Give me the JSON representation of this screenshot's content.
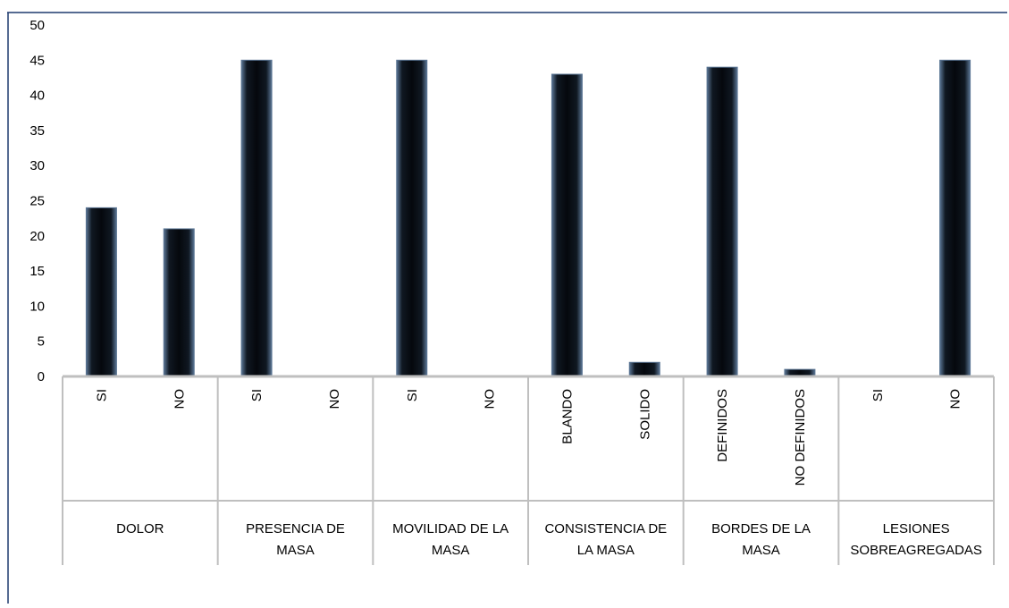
{
  "chart_data": {
    "type": "bar",
    "ylim": [
      0,
      50
    ],
    "yticks": [
      0,
      5,
      10,
      15,
      20,
      25,
      30,
      35,
      40,
      45,
      50
    ],
    "grid": false,
    "legend": "none",
    "groups": [
      {
        "label_lines": [
          "DOLOR"
        ],
        "categories": [
          "SI",
          "NO"
        ],
        "values": [
          24,
          21
        ]
      },
      {
        "label_lines": [
          "PRESENCIA DE",
          "MASA"
        ],
        "categories": [
          "SI",
          "NO"
        ],
        "values": [
          45,
          0
        ]
      },
      {
        "label_lines": [
          "MOVILIDAD DE LA",
          "MASA"
        ],
        "categories": [
          "SI",
          "NO"
        ],
        "values": [
          45,
          0
        ]
      },
      {
        "label_lines": [
          "CONSISTENCIA DE",
          "LA MASA"
        ],
        "categories": [
          "BLANDO",
          "SOLIDO"
        ],
        "values": [
          43,
          2
        ]
      },
      {
        "label_lines": [
          "BORDES DE LA",
          "MASA"
        ],
        "categories": [
          "DEFINIDOS",
          "NO DEFINIDOS"
        ],
        "values": [
          44,
          1
        ]
      },
      {
        "label_lines": [
          "LESIONES",
          "SOBREAGREGADAS"
        ],
        "categories": [
          "SI",
          "NO"
        ],
        "values": [
          0,
          45
        ]
      }
    ],
    "colors": {
      "bar_dark": "#0a0f18",
      "bar_edge": "#5a7594",
      "axis": "#bfbfbf",
      "frame": "#1f3a6e"
    }
  }
}
